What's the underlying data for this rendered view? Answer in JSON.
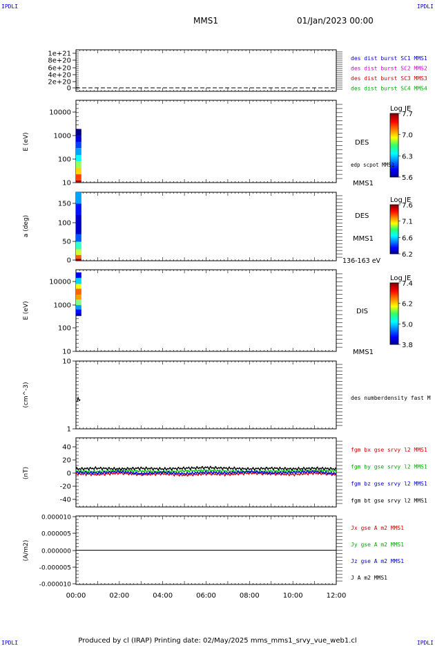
{
  "corner_label": "IPDLI",
  "header": {
    "mission": "MMS1",
    "datetime": "01/Jan/2023 00:00"
  },
  "footer": {
    "text": "Produced by cl (IRAP)   Printing date: 02/May/2025   mms_mms1_srvy_vue_web1.cl"
  },
  "time_axis": {
    "ticks": [
      "00:00",
      "02:00",
      "04:00",
      "06:00",
      "08:00",
      "10:00",
      "12:00"
    ]
  },
  "panels": [
    {
      "id": "p1",
      "ylabel": "",
      "ytick_labels": [
        "1e+21",
        "8e+20",
        "6e+20",
        "4e+20",
        "2e+20",
        "0"
      ],
      "legend": [
        {
          "text": "des dist burst SC1 MMS1",
          "color": "#0000cc"
        },
        {
          "text": "des dist burst SC2 MMS2",
          "color": "#cc00cc"
        },
        {
          "text": "des dist burst SC3 MMS3",
          "color": "#cc0000"
        },
        {
          "text": "des dist burst SC4 MMS4",
          "color": "#00aa00"
        }
      ]
    },
    {
      "id": "p2",
      "ylabel": "E (eV)",
      "ytick_labels": [
        "10000",
        "1000",
        "100",
        "10"
      ],
      "right_labels": [
        "DES",
        "edp scpot MMS1",
        "MMS1"
      ],
      "colorbar": {
        "title": "Log JE",
        "labels": [
          "7.7",
          "7.0",
          "6.3",
          "5.6"
        ]
      }
    },
    {
      "id": "p3",
      "ylabel": "a (deg)",
      "ytick_labels": [
        "150",
        "100",
        "50",
        "0"
      ],
      "right_labels": [
        "DES",
        "MMS1",
        "136-163 eV"
      ],
      "colorbar": {
        "title": "Log JE",
        "labels": [
          "7.6",
          "7.1",
          "6.6",
          "6.2"
        ]
      }
    },
    {
      "id": "p4",
      "ylabel": "E (eV)",
      "ytick_labels": [
        "10000",
        "1000",
        "100",
        "10"
      ],
      "right_labels": [
        "DIS",
        "MMS1"
      ],
      "colorbar": {
        "title": "Log JE",
        "labels": [
          "7.4",
          "6.2",
          "5.0",
          "3.8"
        ]
      }
    },
    {
      "id": "p5",
      "ylabel": "(cm^-3)",
      "ytick_labels": [
        "10",
        "1"
      ],
      "legend": [
        {
          "text": "des numberdensity fast M",
          "color": "#000000"
        }
      ]
    },
    {
      "id": "p6",
      "ylabel": "(nT)",
      "ytick_labels": [
        "40",
        "20",
        "0",
        "-20",
        "-40"
      ],
      "legend": [
        {
          "text": "fgm bx gse srvy l2 MMS1",
          "color": "#cc0000"
        },
        {
          "text": "fgm by gse srvy l2 MMS1",
          "color": "#00aa00"
        },
        {
          "text": "fgm bz gse srvy l2 MMS1",
          "color": "#0000cc"
        },
        {
          "text": "fgm bt gse srvy l2 MMS1",
          "color": "#000000"
        }
      ]
    },
    {
      "id": "p7",
      "ylabel": "(A/m2)",
      "ytick_labels": [
        "0.000010",
        "0.000005",
        "0.000000",
        "-0.000005",
        "-0.000010"
      ],
      "legend": [
        {
          "text": "Jx gse A m2 MMS1",
          "color": "#cc0000"
        },
        {
          "text": "Jy gse A m2 MMS1",
          "color": "#00aa00"
        },
        {
          "text": "Jz gse A m2 MMS1",
          "color": "#0000cc"
        },
        {
          "text": "J A m2 MMS1",
          "color": "#000000"
        }
      ]
    }
  ],
  "chart_data": [
    {
      "type": "line",
      "series": [
        {
          "name": "des dist burst SC1 MMS1",
          "values": [
            0,
            0
          ]
        },
        {
          "name": "des dist burst SC2 MMS2",
          "values": [
            0,
            0
          ]
        },
        {
          "name": "des dist burst SC3 MMS3",
          "values": [
            0,
            0
          ]
        },
        {
          "name": "des dist burst SC4 MMS4",
          "values": [
            0,
            0
          ]
        }
      ],
      "x": [
        "00:00",
        "12:00"
      ],
      "xlim": [
        0,
        12
      ],
      "ylim": [
        0,
        1e+21
      ]
    },
    {
      "type": "heatmap",
      "x_hours": [
        0.0,
        0.25
      ],
      "y_scale": "log",
      "ylim": [
        10,
        10000
      ],
      "energy_rows_eV": [
        900,
        500,
        300,
        180,
        100,
        60,
        35,
        20,
        12
      ],
      "log_je_rows": [
        5.6,
        5.8,
        6.0,
        6.2,
        6.4,
        6.7,
        7.0,
        7.3,
        7.6
      ],
      "color_scale": [
        5.6,
        7.7
      ]
    },
    {
      "type": "heatmap",
      "x_hours": [
        0.0,
        0.25
      ],
      "ylim": [
        0,
        180
      ],
      "pitch_rows_deg": [
        180,
        150,
        120,
        90,
        70,
        50,
        30,
        15,
        5
      ],
      "log_je_rows": [
        6.6,
        6.4,
        6.3,
        6.3,
        6.5,
        6.8,
        7.0,
        7.3,
        7.6
      ],
      "color_scale": [
        6.2,
        7.6
      ]
    },
    {
      "type": "heatmap",
      "x_hours": [
        0.0,
        0.25
      ],
      "y_scale": "log",
      "ylim": [
        10,
        10000
      ],
      "energy_rows_eV": [
        8000,
        5000,
        3000,
        2000,
        1200,
        800,
        500,
        350,
        250
      ],
      "log_je_rows": [
        4.2,
        5.0,
        6.0,
        6.6,
        6.4,
        5.6,
        4.8,
        4.3,
        4.0
      ],
      "color_scale": [
        3.8,
        7.4
      ]
    },
    {
      "type": "line",
      "series": [
        {
          "name": "des numberdensity fast M",
          "x_hours": [
            0.05,
            0.1,
            0.15,
            0.2
          ],
          "values": [
            2.5,
            2.9,
            2.6,
            2.7
          ]
        }
      ],
      "y_scale": "log",
      "ylim": [
        1,
        10
      ],
      "xlim": [
        0,
        12
      ]
    },
    {
      "type": "line",
      "x_hours": [
        0,
        1,
        2,
        3,
        4,
        5,
        6,
        7,
        8,
        9,
        10,
        11,
        12
      ],
      "series": [
        {
          "name": "fgm bx gse srvy l2 MMS1",
          "values": [
            -2,
            -3,
            -1,
            -3,
            -2,
            -4,
            -2,
            -3,
            -1,
            -2,
            -3,
            -1,
            -3
          ]
        },
        {
          "name": "fgm by gse srvy l2 MMS1",
          "values": [
            2,
            1,
            3,
            2,
            1,
            2,
            3,
            2,
            1,
            2,
            2,
            3,
            2
          ]
        },
        {
          "name": "fgm bz gse srvy l2 MMS1",
          "values": [
            0,
            -1,
            1,
            -2,
            0,
            -2,
            0,
            -1,
            1,
            -1,
            0,
            1,
            -2
          ]
        },
        {
          "name": "fgm bt gse srvy l2 MMS1",
          "values": [
            5,
            6,
            5,
            6,
            5,
            6,
            7,
            6,
            5,
            6,
            5,
            6,
            5
          ]
        }
      ],
      "ylim": [
        -50,
        50
      ],
      "xlim": [
        0,
        12
      ]
    },
    {
      "type": "line",
      "x_hours": [
        0,
        2,
        4,
        6,
        8,
        10,
        12
      ],
      "series": [
        {
          "name": "J A m2 MMS1",
          "values": [
            0,
            0,
            0,
            0,
            0,
            0,
            0
          ]
        }
      ],
      "ylim": [
        -1e-05,
        1e-05
      ],
      "xlim": [
        0,
        12
      ]
    }
  ],
  "colors": {
    "frame": "#000000",
    "corner_label": "#0000cc"
  }
}
